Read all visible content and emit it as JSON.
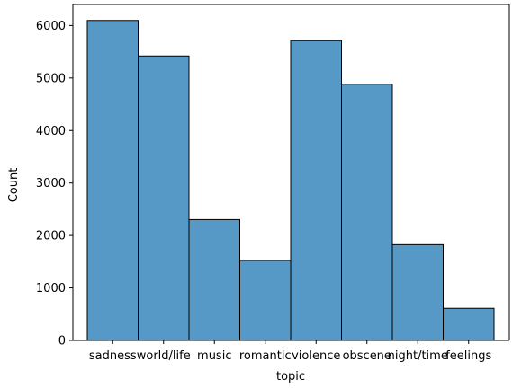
{
  "chart_data": {
    "type": "bar",
    "title": "",
    "xlabel": "topic",
    "ylabel": "Count",
    "categories": [
      "sadness",
      "world/life",
      "music",
      "romantic",
      "violence",
      "obscene",
      "night/time",
      "feelings"
    ],
    "values": [
      6096,
      5420,
      2303,
      1524,
      5712,
      4882,
      1825,
      612
    ],
    "ylim": [
      0,
      6400
    ],
    "yticks": [
      0,
      1000,
      2000,
      3000,
      4000,
      5000,
      6000
    ],
    "ytick_labels": [
      "0",
      "1000",
      "2000",
      "3000",
      "4000",
      "5000",
      "6000"
    ],
    "bar_color": "#5799c6",
    "edge_color": "#000000",
    "grid": false,
    "legend": false
  }
}
